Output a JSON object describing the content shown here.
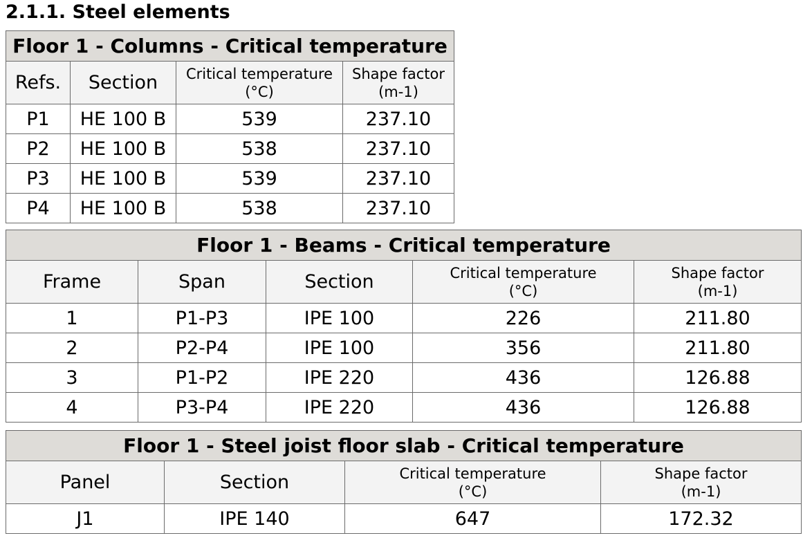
{
  "heading": "2.1.1. Steel elements",
  "tables": [
    {
      "title": "Floor 1 - Columns - Critical temperature",
      "columns": [
        "Refs.",
        "Section",
        "Critical temperature\n(°C)",
        "Shape factor\n(m-1)"
      ],
      "rows": [
        [
          "P1",
          "HE 100 B",
          "539",
          "237.10"
        ],
        [
          "P2",
          "HE 100 B",
          "538",
          "237.10"
        ],
        [
          "P3",
          "HE 100 B",
          "539",
          "237.10"
        ],
        [
          "P4",
          "HE 100 B",
          "538",
          "237.10"
        ]
      ]
    },
    {
      "title": "Floor 1 - Beams - Critical temperature",
      "columns": [
        "Frame",
        "Span",
        "Section",
        "Critical temperature\n(°C)",
        "Shape factor\n(m-1)"
      ],
      "rows": [
        [
          "1",
          "P1-P3",
          "IPE 100",
          "226",
          "211.80"
        ],
        [
          "2",
          "P2-P4",
          "IPE 100",
          "356",
          "211.80"
        ],
        [
          "3",
          "P1-P2",
          "IPE 220",
          "436",
          "126.88"
        ],
        [
          "4",
          "P3-P4",
          "IPE 220",
          "436",
          "126.88"
        ]
      ]
    },
    {
      "title": "Floor 1 - Steel joist floor slab - Critical temperature",
      "columns": [
        "Panel",
        "Section",
        "Critical temperature\n(°C)",
        "Shape factor\n(m-1)"
      ],
      "rows": [
        [
          "J1",
          "IPE 140",
          "647",
          "172.32"
        ]
      ]
    }
  ]
}
